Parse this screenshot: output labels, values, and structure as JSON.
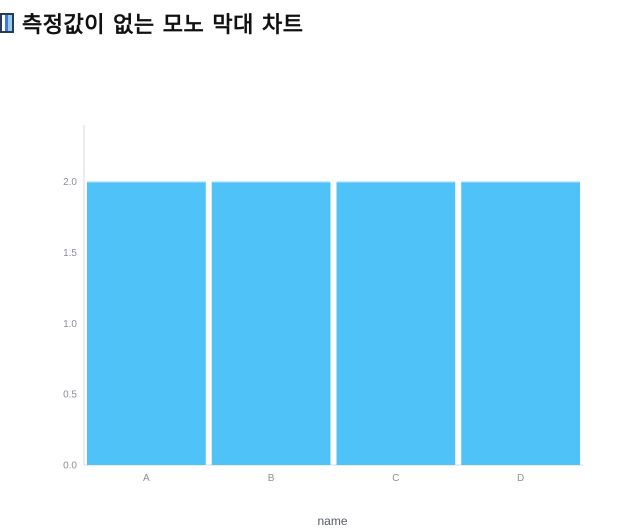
{
  "page": {
    "title": "측정값이 없는 모노 막대 차트",
    "title_icon": "bar-chart-icon"
  },
  "chart_data": {
    "type": "bar",
    "categories": [
      "A",
      "B",
      "C",
      "D"
    ],
    "values": [
      2,
      2,
      2,
      2
    ],
    "xlabel": "name",
    "ylabel": "",
    "ylim": [
      0,
      2.4
    ],
    "yticks": [
      0,
      0.5,
      1,
      1.5,
      2
    ],
    "ytick_labels": [
      "0.0",
      "0.5",
      "1.0",
      "1.5",
      "2.0"
    ],
    "grid": false,
    "legend": "none",
    "bar_color": "#4fc3f7"
  }
}
